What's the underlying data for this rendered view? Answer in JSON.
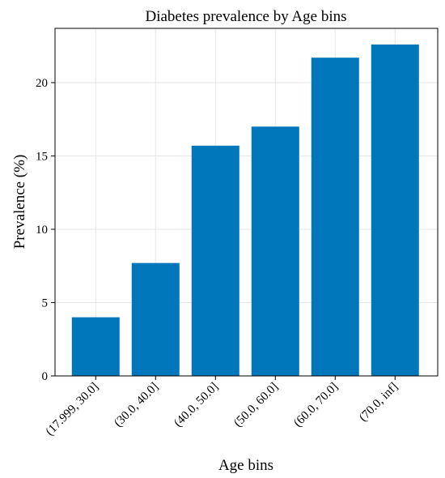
{
  "chart_data": {
    "type": "bar",
    "title": "Diabetes prevalence by Age bins",
    "xlabel": "Age bins",
    "ylabel": "Prevalence (%)",
    "categories": [
      "(17.999, 30.0]",
      "(30.0, 40.0]",
      "(40.0, 50.0]",
      "(50.0, 60.0]",
      "(60.0, 70.0]",
      "(70.0, inf]"
    ],
    "values": [
      4.0,
      7.7,
      15.7,
      17.0,
      21.7,
      22.6
    ],
    "ylim": [
      0,
      23.7
    ],
    "yticks": [
      0,
      5,
      10,
      15,
      20
    ],
    "grid": true,
    "bar_color": "#0077bb"
  }
}
